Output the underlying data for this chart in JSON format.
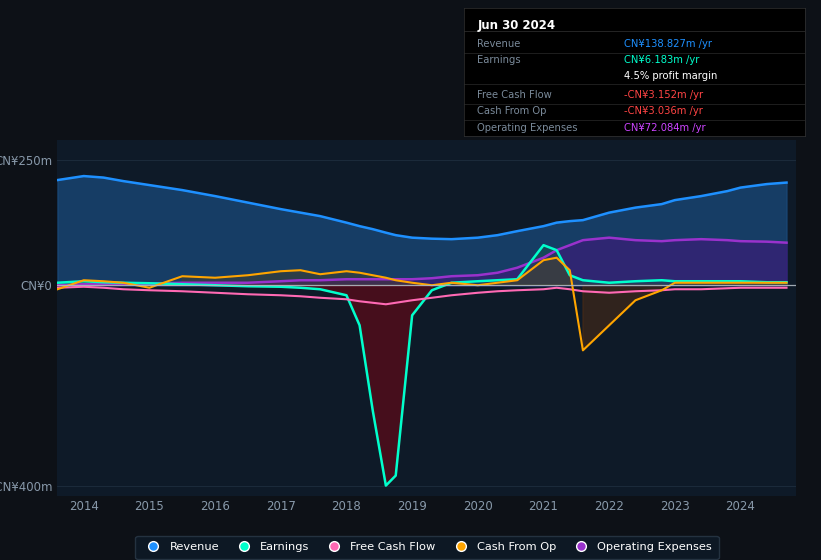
{
  "background_color": "#0d1117",
  "plot_bg_color": "#0e1a28",
  "ylim": [
    -420,
    290
  ],
  "yticks_labels": [
    "CN¥250m",
    "CN¥0",
    "-CN¥400m"
  ],
  "yticks_values": [
    250,
    0,
    -400
  ],
  "xlim_start": 2013.6,
  "xlim_end": 2024.85,
  "xticks": [
    2014,
    2015,
    2016,
    2017,
    2018,
    2019,
    2020,
    2021,
    2022,
    2023,
    2024
  ],
  "legend": [
    {
      "label": "Revenue",
      "color": "#1e90ff"
    },
    {
      "label": "Earnings",
      "color": "#00ffcc"
    },
    {
      "label": "Free Cash Flow",
      "color": "#ff69b4"
    },
    {
      "label": "Cash From Op",
      "color": "#ffa500"
    },
    {
      "label": "Operating Expenses",
      "color": "#9932cc"
    }
  ],
  "info_title": "Jun 30 2024",
  "info_rows": [
    {
      "label": "Revenue",
      "value": "CN¥138.827m /yr",
      "value_color": "#1e90ff"
    },
    {
      "label": "Earnings",
      "value": "CN¥6.183m /yr",
      "value_color": "#00ffcc"
    },
    {
      "label": "",
      "value": "4.5% profit margin",
      "value_color": "#ffffff"
    },
    {
      "label": "Free Cash Flow",
      "value": "-CN¥3.152m /yr",
      "value_color": "#ff4444"
    },
    {
      "label": "Cash From Op",
      "value": "-CN¥3.036m /yr",
      "value_color": "#ff4444"
    },
    {
      "label": "Operating Expenses",
      "value": "CN¥72.084m /yr",
      "value_color": "#cc44ff"
    }
  ]
}
